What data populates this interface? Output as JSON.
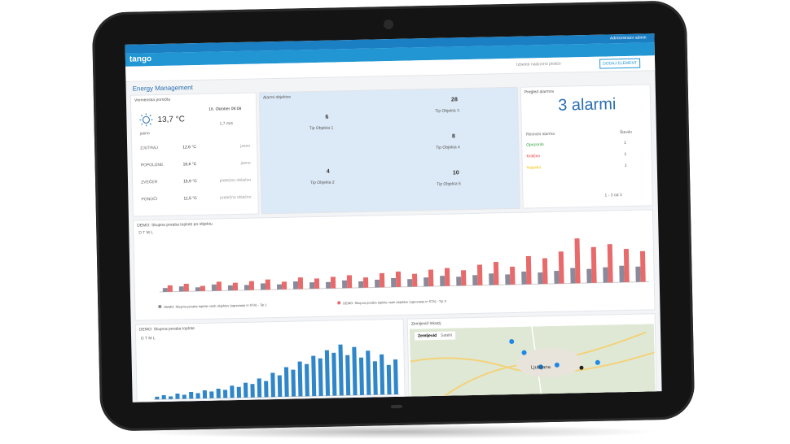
{
  "topbar": {
    "user": "Administrator admin",
    "logo": "tango",
    "search": "Izberite nadzorno ploščo",
    "add_button": "DODAJ ELEMENT"
  },
  "page_title": "Energy Management",
  "weather": {
    "title": "Vremenska poročila",
    "temp": "13,7 °C",
    "now_desc": "jasno",
    "date": "16. Oktober 09:08",
    "wind": "1,7 m/s",
    "periods": [
      {
        "name": "ZJUTRAJ",
        "temp": "12,6 °C",
        "desc": "jasno"
      },
      {
        "name": "POPOLDNE",
        "temp": "18,6 °C",
        "desc": "jasno"
      },
      {
        "name": "ZVEČER",
        "temp": "15,9 °C",
        "desc": "pretežno oblačno"
      },
      {
        "name": "PONOČI",
        "temp": "11,5 °C",
        "desc": "pretežno oblačno"
      }
    ]
  },
  "objects": {
    "title": "Alarmi objektov",
    "items": [
      {
        "count": 6,
        "label": "Tip Objekta 1"
      },
      {
        "count": 4,
        "label": "Tip Objekta 2"
      },
      {
        "count": 28,
        "label": "Tip Objekta 3"
      },
      {
        "count": 8,
        "label": "Tip Objekta 4"
      },
      {
        "count": 10,
        "label": "Tip Objekta 5"
      }
    ]
  },
  "alarms": {
    "title": "Pregled alarmov",
    "big": "3 alarmi",
    "headers": [
      "Resnost alarma",
      "Število"
    ],
    "rows": [
      {
        "name": "Opozorilo",
        "count": 1
      },
      {
        "name": "Kritično",
        "count": 1
      },
      {
        "name": "Napaka",
        "count": 1
      }
    ],
    "footer": "1 - 3 od 3"
  },
  "chart_heat": {
    "type": "bar",
    "title": "DEMO: Skupna poraba toplote po objektu",
    "controls": "D T M L",
    "ylim": [
      0,
      40
    ],
    "series": [
      {
        "name": "DEMO: Skupna poraba toplote vseh objektov (ogrevanje in STA) - Tip 1",
        "color": "#8a8a9a",
        "values": [
          3,
          4,
          3,
          5,
          4,
          4,
          5,
          4,
          6,
          5,
          5,
          6,
          5,
          6,
          7,
          6,
          7,
          8,
          7,
          8,
          9,
          8,
          10,
          9,
          10,
          12,
          11,
          12,
          13,
          12
        ]
      },
      {
        "name": "DEMO: Skupna poraba toplote vseh objektov (ogrevanje in STA) - Tip 3",
        "color": "#e86a6a",
        "values": [
          5,
          6,
          4,
          7,
          6,
          7,
          8,
          6,
          9,
          8,
          9,
          10,
          8,
          11,
          12,
          10,
          13,
          14,
          12,
          16,
          18,
          14,
          22,
          20,
          25,
          35,
          28,
          30,
          26,
          24
        ]
      }
    ]
  },
  "chart_total": {
    "type": "bar",
    "title": "DEMO: Skupna poraba toplote",
    "controls": "D T M L",
    "ylim": [
      0,
      40
    ],
    "color": "#2f86c8",
    "values": [
      2,
      3,
      2,
      4,
      3,
      5,
      4,
      6,
      5,
      7,
      6,
      9,
      8,
      11,
      10,
      14,
      12,
      18,
      16,
      22,
      20,
      26,
      24,
      30,
      28,
      34,
      32,
      38,
      30,
      36,
      28,
      33,
      25,
      30,
      22,
      26
    ]
  },
  "map": {
    "title": "Zemljevid lokacij",
    "tab_map": "Zemljevid",
    "tab_sat": "Satelit",
    "city": "Ljubljana"
  }
}
